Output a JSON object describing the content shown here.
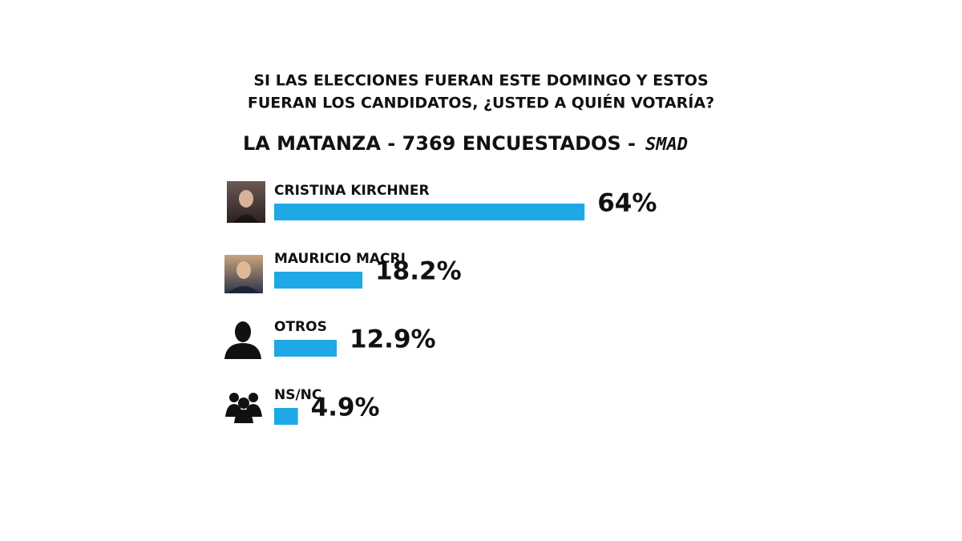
{
  "chart_data": {
    "type": "bar",
    "orientation": "horizontal",
    "title": [
      "SI LAS ELECCIONES FUERAN ESTE DOMINGO Y ESTOS",
      "FUERAN LOS CANDIDATOS, ¿USTED A QUIÉN VOTARÍA?"
    ],
    "subtitle": "LA MATANZA - 7369 ENCUESTADOS -",
    "logo": "SMAD",
    "categories": [
      "CRISTINA KIRCHNER",
      "MAURICIO MACRI",
      "OTROS",
      "NS/NC"
    ],
    "values": [
      64,
      18.2,
      12.9,
      4.9
    ],
    "value_labels": [
      "64%",
      "18.2%",
      "12.9%",
      "4.9%"
    ],
    "color": "#1ea8e6"
  }
}
